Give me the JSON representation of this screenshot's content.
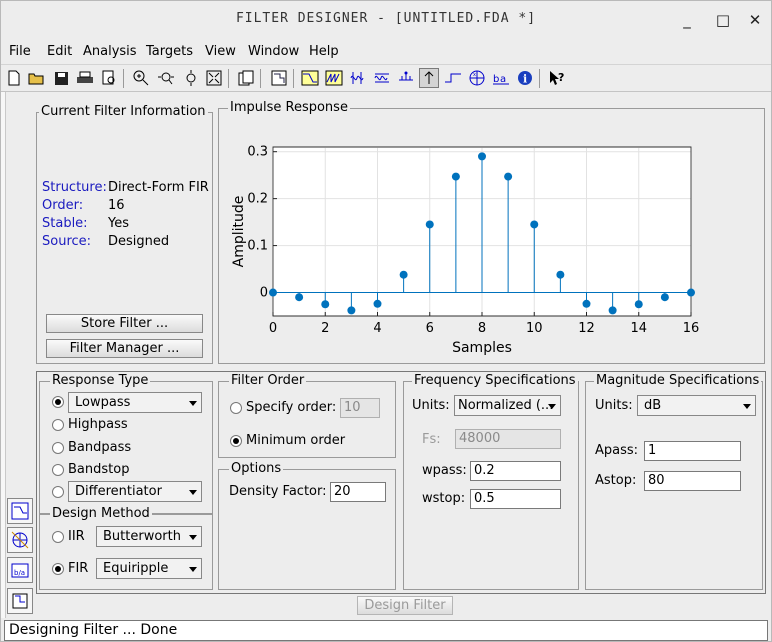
{
  "window": {
    "title": "FILTER DESIGNER - [UNTITLED.FDA *]",
    "minimize": "_",
    "maximize": "□",
    "close": "✕"
  },
  "menu": [
    "File",
    "Edit",
    "Analysis",
    "Targets",
    "View",
    "Window",
    "Help"
  ],
  "toolbar_icons": [
    "new-icon",
    "open-icon",
    "save-icon",
    "print-icon",
    "print-preview-icon",
    "zoom-in-icon",
    "zoom-x-icon",
    "zoom-y-icon",
    "full-view-icon",
    "new-window-icon",
    "filter-specs-icon",
    "magnitude-response-icon",
    "phase-response-icon",
    "group-delay-icon",
    "phase-delay-icon",
    "impulse-response-icon",
    "step-response-icon",
    "pole-zero-icon",
    "coefficients-icon",
    "info-icon",
    "whats-this-icon"
  ],
  "current_filter": {
    "title": "Current Filter Information",
    "structure_label": "Structure:",
    "structure_value": "Direct-Form FIR",
    "order_label": "Order:",
    "order_value": "16",
    "stable_label": "Stable:",
    "stable_value": "Yes",
    "source_label": "Source:",
    "source_value": "Designed",
    "store_button": "Store Filter ...",
    "manager_button": "Filter Manager ..."
  },
  "impulse": {
    "title": "Impulse Response"
  },
  "chart_data": {
    "type": "stem",
    "xlabel": "Samples",
    "ylabel": "Amplitude",
    "xlim": [
      0,
      16
    ],
    "ylim": [
      -0.05,
      0.31
    ],
    "xticks": [
      0,
      2,
      4,
      6,
      8,
      10,
      12,
      14,
      16
    ],
    "yticks": [
      0,
      0.1,
      0.2,
      0.3
    ],
    "ytick_labels": [
      "0",
      "0.1",
      "0.2",
      "0.3"
    ],
    "grid": true,
    "color": "#0072bd",
    "x": [
      0,
      1,
      2,
      3,
      4,
      5,
      6,
      7,
      8,
      9,
      10,
      11,
      12,
      13,
      14,
      15,
      16
    ],
    "y": [
      0.0,
      -0.01,
      -0.025,
      -0.038,
      -0.024,
      0.038,
      0.145,
      0.247,
      0.29,
      0.247,
      0.145,
      0.038,
      -0.024,
      -0.038,
      -0.025,
      -0.01,
      0.0
    ]
  },
  "response_type": {
    "title": "Response Type",
    "options": [
      "Lowpass",
      "Highpass",
      "Bandpass",
      "Bandstop"
    ],
    "lowpass_select": "Lowpass",
    "other_select": "Differentiator"
  },
  "design_method": {
    "title": "Design Method",
    "iir_label": "IIR",
    "iir_select": "Butterworth",
    "fir_label": "FIR",
    "fir_select": "Equiripple"
  },
  "filter_order": {
    "title": "Filter Order",
    "specify_label": "Specify order:",
    "specify_value": "10",
    "minimum_label": "Minimum order"
  },
  "options": {
    "title": "Options",
    "density_label": "Density Factor:",
    "density_value": "20"
  },
  "freq_specs": {
    "title": "Frequency Specifications",
    "units_label": "Units:",
    "units_value": "Normalized (...",
    "fs_label": "Fs:",
    "fs_value": "48000",
    "wpass_label": "wpass:",
    "wpass_value": "0.2",
    "wstop_label": "wstop:",
    "wstop_value": "0.5"
  },
  "mag_specs": {
    "title": "Magnitude Specifications",
    "units_label": "Units:",
    "units_value": "dB",
    "apass_label": "Apass:",
    "apass_value": "1",
    "astop_label": "Astop:",
    "astop_value": "80"
  },
  "design_button": "Design Filter",
  "status": "Designing Filter ... Done"
}
